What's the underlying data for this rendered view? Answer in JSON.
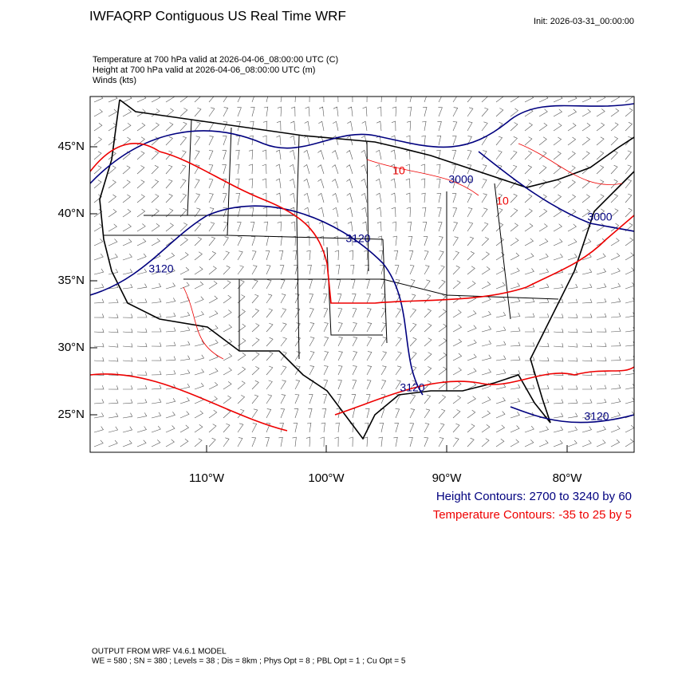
{
  "title": "IWFAQRP Contiguous US Real Time WRF",
  "init": "Init: 2026-03-31_00:00:00",
  "fields": [
    "Temperature at 700 hPa valid at 2026-04-06_08:00:00 UTC   (C)",
    "Height at 700 hPa valid at 2026-04-06_08:00:00 UTC   (m)",
    "Winds   (kts)"
  ],
  "map": {
    "lat_labels": [
      "45°N",
      "40°N",
      "35°N",
      "30°N",
      "25°N"
    ],
    "lon_labels": [
      "110°W",
      "100°W",
      "90°W",
      "80°W"
    ],
    "contour_labels": [
      "10",
      "3000",
      "10",
      "3000",
      "3120",
      "3120",
      "3120",
      "3120"
    ]
  },
  "legend": {
    "height": "Height Contours: 2700 to 3240 by 60",
    "temperature": "Temperature Contours: -35 to 25 by 5"
  },
  "footer": [
    "OUTPUT FROM WRF V4.6.1 MODEL",
    "WE = 580 ; SN = 380 ; Levels = 38 ; Dis = 8km ; Phys Opt = 8 ; PBL Opt = 1 ; Cu Opt = 5"
  ]
}
